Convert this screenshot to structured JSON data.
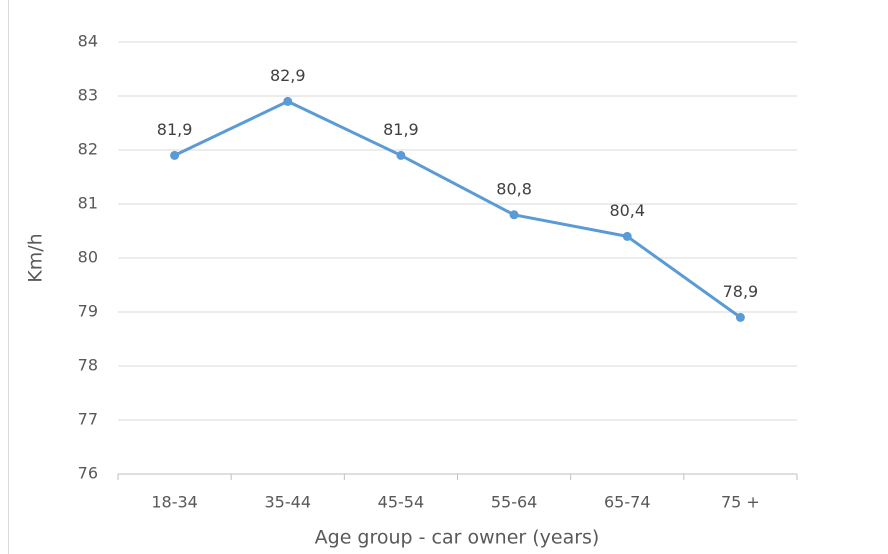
{
  "chart_data": {
    "type": "line",
    "x_label": "Age group - car owner (years)",
    "y_label": "Km/h",
    "categories": [
      "18-34",
      "35-44",
      "45-54",
      "55-64",
      "65-74",
      "75 +"
    ],
    "values": [
      81.9,
      82.9,
      81.9,
      80.8,
      80.4,
      78.9
    ],
    "value_labels": [
      "81,9",
      "82,9",
      "81,9",
      "80,8",
      "80,4",
      "78,9"
    ],
    "color": "#5b9bd5",
    "ylim": [
      76,
      84
    ],
    "yticks": [
      76,
      77,
      78,
      79,
      80,
      81,
      82,
      83,
      84
    ],
    "grid": true
  }
}
